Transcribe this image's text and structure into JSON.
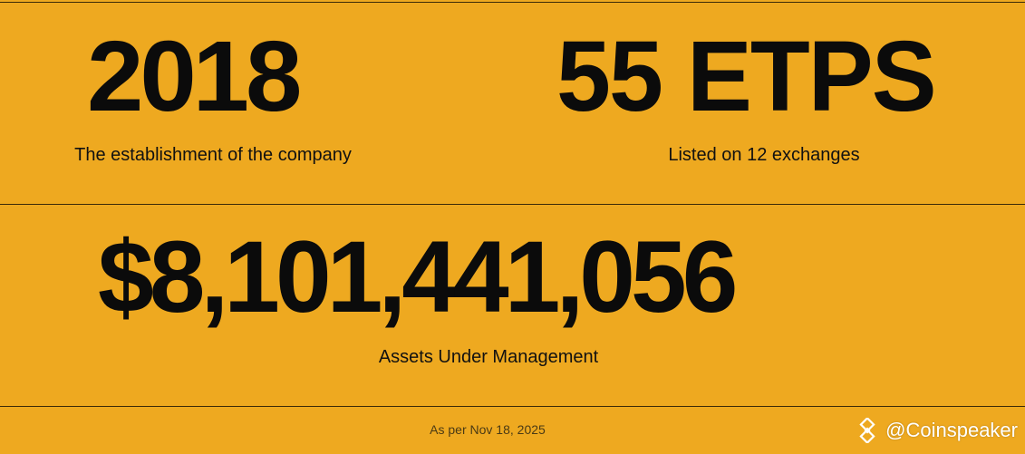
{
  "stats": [
    {
      "value": "2018",
      "label": "The establishment of the company"
    },
    {
      "value": "55 ETPS",
      "label": "Listed on 12 exchanges"
    },
    {
      "value": "$8,101,441,056",
      "label": "Assets Under Management"
    }
  ],
  "footnote": "As per Nov 18, 2025",
  "watermark": {
    "icon": "binance-square-icon",
    "handle": "@Coinspeaker"
  },
  "colors": {
    "background": "#EEA920",
    "text": "#111111",
    "rule": "#3a2a08",
    "watermark": "#ffffff"
  }
}
